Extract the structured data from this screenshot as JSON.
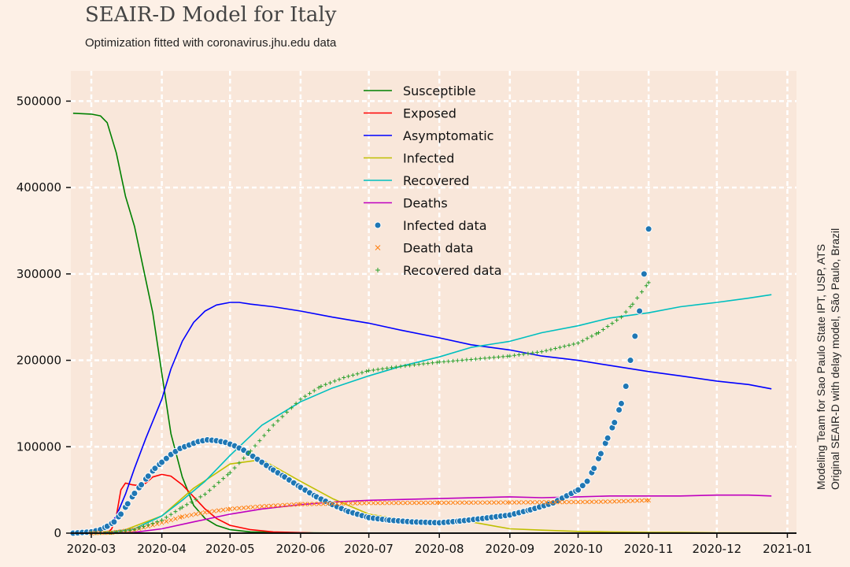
{
  "title": "SEAIR-D Model for Italy",
  "subtitle": "Optimization fitted with coronavirus.jhu.edu data",
  "side_note": [
    "Modeling Team for Sao Paulo State IPT, USP, ATS",
    "Original SEAIR-D with delay model, São Paulo, Brazil"
  ],
  "colors": {
    "background": "#fdf0e6",
    "plot_bg": "#f9e7da",
    "susceptible": "#008000",
    "exposed": "#ff0000",
    "asymptomatic": "#0000ff",
    "infected": "#bfbf00",
    "recovered": "#00bfbf",
    "deaths": "#bf00bf",
    "infected_data": "#1f77b4",
    "death_data": "#ff7f0e",
    "recovered_data": "#2ca02c"
  },
  "chart_data": {
    "type": "line",
    "title": "SEAIR-D Model for Italy",
    "xlabel": "",
    "ylabel": "",
    "x_axis_type": "date",
    "xlim": [
      "2020-02-21",
      "2021-01-05"
    ],
    "ylim": [
      0,
      535000
    ],
    "xticks": [
      "2020-03",
      "2020-04",
      "2020-05",
      "2020-06",
      "2020-07",
      "2020-08",
      "2020-09",
      "2020-10",
      "2020-11",
      "2020-12",
      "2021-01"
    ],
    "yticks": [
      "0",
      "100000",
      "200000",
      "300000",
      "400000",
      "500000"
    ],
    "grid": true,
    "legend": "top-center",
    "series": [
      {
        "name": "Susceptible",
        "kind": "line",
        "color_key": "susceptible",
        "x": [
          "2020-02-22",
          "2020-03-01",
          "2020-03-05",
          "2020-03-08",
          "2020-03-12",
          "2020-03-16",
          "2020-03-20",
          "2020-03-24",
          "2020-03-28",
          "2020-04-01",
          "2020-04-05",
          "2020-04-10",
          "2020-04-15",
          "2020-04-20",
          "2020-04-25",
          "2020-05-01",
          "2020-05-10",
          "2020-06-01",
          "2020-07-01",
          "2020-12-25"
        ],
        "y": [
          486000,
          485000,
          483000,
          475000,
          440000,
          390000,
          355000,
          305000,
          255000,
          185000,
          115000,
          65000,
          32000,
          17000,
          9000,
          4000,
          1500,
          500,
          0,
          0
        ]
      },
      {
        "name": "Exposed",
        "kind": "line",
        "color_key": "exposed",
        "x": [
          "2020-02-22",
          "2020-03-08",
          "2020-03-10",
          "2020-03-12",
          "2020-03-14",
          "2020-03-16",
          "2020-03-19",
          "2020-03-22",
          "2020-03-25",
          "2020-03-28",
          "2020-04-01",
          "2020-04-05",
          "2020-04-10",
          "2020-04-15",
          "2020-04-20",
          "2020-04-25",
          "2020-05-01",
          "2020-05-10",
          "2020-05-20",
          "2020-06-10"
        ],
        "y": [
          0,
          0,
          5000,
          20000,
          50000,
          58000,
          56000,
          55000,
          58000,
          65000,
          68000,
          66000,
          56000,
          42000,
          28000,
          17000,
          9000,
          4000,
          1500,
          0
        ]
      },
      {
        "name": "Asymptomatic",
        "kind": "line",
        "color_key": "asymptomatic",
        "x": [
          "2020-03-01",
          "2020-03-08",
          "2020-03-12",
          "2020-03-16",
          "2020-03-20",
          "2020-03-25",
          "2020-04-01",
          "2020-04-05",
          "2020-04-10",
          "2020-04-15",
          "2020-04-20",
          "2020-04-25",
          "2020-05-01",
          "2020-05-05",
          "2020-05-10",
          "2020-05-20",
          "2020-06-01",
          "2020-06-15",
          "2020-07-01",
          "2020-07-15",
          "2020-08-01",
          "2020-08-15",
          "2020-09-01",
          "2020-09-15",
          "2020-10-01",
          "2020-10-15",
          "2020-11-01",
          "2020-11-15",
          "2020-12-01",
          "2020-12-15",
          "2020-12-25"
        ],
        "y": [
          0,
          5000,
          20000,
          45000,
          75000,
          110000,
          155000,
          190000,
          222000,
          244000,
          257000,
          264000,
          267000,
          267000,
          265000,
          262000,
          257000,
          250000,
          243000,
          235000,
          226000,
          218000,
          212000,
          205000,
          200000,
          194000,
          187000,
          182000,
          176000,
          172000,
          167000
        ]
      },
      {
        "name": "Infected",
        "kind": "line",
        "color_key": "infected",
        "x": [
          "2020-03-01",
          "2020-03-15",
          "2020-04-01",
          "2020-04-15",
          "2020-05-01",
          "2020-05-15",
          "2020-06-01",
          "2020-06-15",
          "2020-07-01",
          "2020-07-15",
          "2020-08-01",
          "2020-08-15",
          "2020-09-01",
          "2020-09-15",
          "2020-10-01",
          "2020-10-15",
          "2020-11-01",
          "2020-11-15",
          "2020-12-01",
          "2020-12-25"
        ],
        "y": [
          0,
          3000,
          20000,
          52000,
          80000,
          85000,
          60000,
          40000,
          22000,
          16000,
          14000,
          13000,
          5000,
          3500,
          2000,
          1500,
          1000,
          800,
          500,
          300
        ]
      },
      {
        "name": "Recovered",
        "kind": "line",
        "color_key": "recovered",
        "x": [
          "2020-03-05",
          "2020-03-20",
          "2020-04-01",
          "2020-04-10",
          "2020-04-20",
          "2020-05-01",
          "2020-05-15",
          "2020-06-01",
          "2020-06-15",
          "2020-07-01",
          "2020-07-15",
          "2020-08-01",
          "2020-08-15",
          "2020-09-01",
          "2020-09-15",
          "2020-10-01",
          "2020-10-15",
          "2020-11-01",
          "2020-11-15",
          "2020-12-01",
          "2020-12-15",
          "2020-12-25"
        ],
        "y": [
          0,
          5000,
          20000,
          38000,
          60000,
          90000,
          125000,
          152000,
          168000,
          182000,
          193000,
          204000,
          215000,
          222000,
          232000,
          240000,
          249000,
          255000,
          262000,
          267000,
          272000,
          276000
        ]
      },
      {
        "name": "Deaths",
        "kind": "line",
        "color_key": "deaths",
        "x": [
          "2020-03-05",
          "2020-03-20",
          "2020-04-01",
          "2020-04-15",
          "2020-05-01",
          "2020-05-15",
          "2020-06-01",
          "2020-06-15",
          "2020-07-01",
          "2020-08-01",
          "2020-09-01",
          "2020-09-15",
          "2020-10-01",
          "2020-10-15",
          "2020-11-01",
          "2020-11-15",
          "2020-12-01",
          "2020-12-15",
          "2020-12-25"
        ],
        "y": [
          0,
          1000,
          5000,
          13000,
          22000,
          28000,
          33000,
          36000,
          38000,
          40000,
          42000,
          41000,
          42000,
          43000,
          43000,
          43000,
          44000,
          44000,
          43000
        ]
      },
      {
        "name": "Infected data",
        "kind": "scatter",
        "marker": "circle",
        "color_key": "infected_data",
        "x": [
          "2020-02-22",
          "2020-03-01",
          "2020-03-05",
          "2020-03-08",
          "2020-03-11",
          "2020-03-14",
          "2020-03-17",
          "2020-03-20",
          "2020-03-23",
          "2020-03-26",
          "2020-03-29",
          "2020-04-01",
          "2020-04-05",
          "2020-04-09",
          "2020-04-13",
          "2020-04-17",
          "2020-04-21",
          "2020-04-25",
          "2020-04-29",
          "2020-05-03",
          "2020-05-07",
          "2020-05-11",
          "2020-05-15",
          "2020-05-20",
          "2020-05-25",
          "2020-06-01",
          "2020-06-08",
          "2020-06-15",
          "2020-06-22",
          "2020-07-01",
          "2020-07-10",
          "2020-07-20",
          "2020-08-01",
          "2020-08-10",
          "2020-08-20",
          "2020-09-01",
          "2020-09-10",
          "2020-09-20",
          "2020-10-01",
          "2020-10-05",
          "2020-10-08",
          "2020-10-11",
          "2020-10-14",
          "2020-10-17",
          "2020-10-20",
          "2020-10-22",
          "2020-10-24",
          "2020-10-26",
          "2020-10-28",
          "2020-10-30",
          "2020-11-01"
        ],
        "y": [
          0,
          1500,
          4000,
          8000,
          13000,
          22000,
          34000,
          46000,
          56000,
          66000,
          75000,
          82000,
          91000,
          98000,
          102000,
          106000,
          108000,
          107000,
          105000,
          101000,
          96000,
          89000,
          82000,
          73000,
          65000,
          53000,
          42000,
          33000,
          25000,
          18000,
          15000,
          13000,
          12000,
          14000,
          17000,
          21000,
          27000,
          35000,
          50000,
          60000,
          75000,
          92000,
          110000,
          128000,
          150000,
          170000,
          200000,
          228000,
          257000,
          300000,
          352000
        ]
      },
      {
        "name": "Death data",
        "kind": "scatter",
        "marker": "x",
        "color_key": "death_data",
        "x": [
          "2020-03-01",
          "2020-03-10",
          "2020-03-20",
          "2020-04-01",
          "2020-04-10",
          "2020-04-20",
          "2020-05-01",
          "2020-05-15",
          "2020-06-01",
          "2020-07-01",
          "2020-08-01",
          "2020-09-01",
          "2020-10-01",
          "2020-10-15",
          "2020-11-01"
        ],
        "y": [
          0,
          600,
          4000,
          12000,
          19000,
          24000,
          28000,
          31000,
          33500,
          34800,
          35200,
          35500,
          36000,
          36500,
          38000
        ]
      },
      {
        "name": "Recovered data",
        "kind": "scatter",
        "marker": "plus",
        "color_key": "recovered_data",
        "x": [
          "2020-03-01",
          "2020-03-10",
          "2020-03-20",
          "2020-04-01",
          "2020-04-10",
          "2020-04-20",
          "2020-05-01",
          "2020-05-10",
          "2020-05-20",
          "2020-06-01",
          "2020-06-10",
          "2020-06-20",
          "2020-07-01",
          "2020-07-15",
          "2020-08-01",
          "2020-08-15",
          "2020-09-01",
          "2020-09-15",
          "2020-10-01",
          "2020-10-10",
          "2020-10-20",
          "2020-10-25",
          "2020-11-01"
        ],
        "y": [
          0,
          500,
          4000,
          15000,
          30000,
          45000,
          70000,
          95000,
          125000,
          155000,
          170000,
          180000,
          188000,
          193000,
          198000,
          201000,
          205000,
          210000,
          220000,
          232000,
          250000,
          265000,
          290000
        ]
      }
    ]
  }
}
